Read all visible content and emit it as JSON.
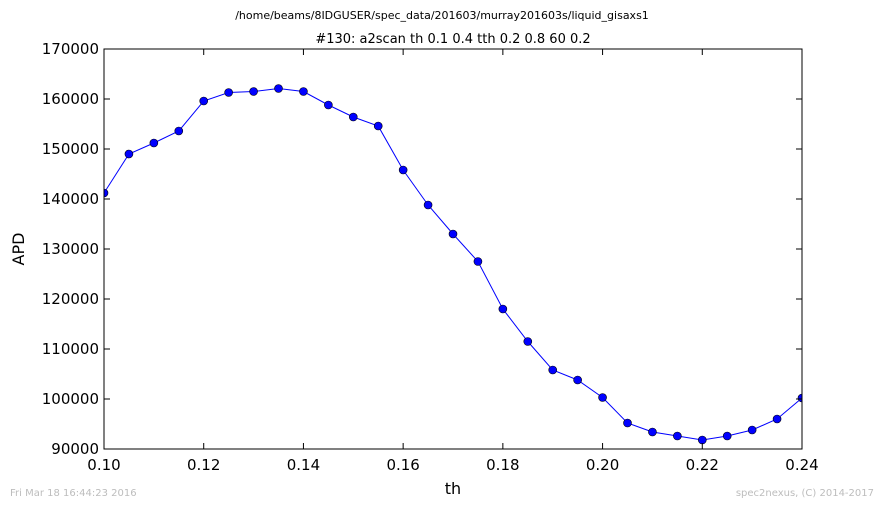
{
  "chart_data": {
    "type": "line",
    "suptitle": "/home/beams/8IDGUSER/spec_data/201603/murray201603s/liquid_gisaxs1",
    "title": "#130: a2scan  th 0.1 0.4  tth 0.2 0.8  60 0.2",
    "xlabel": "th",
    "ylabel": "APD",
    "xlim": [
      0.1,
      0.24
    ],
    "ylim": [
      90000,
      170000
    ],
    "xticks": [
      "0.10",
      "0.12",
      "0.14",
      "0.16",
      "0.18",
      "0.20",
      "0.22",
      "0.24"
    ],
    "yticks": [
      "90000",
      "100000",
      "110000",
      "120000",
      "130000",
      "140000",
      "150000",
      "160000",
      "170000"
    ],
    "grid": false,
    "series": [
      {
        "color": "#0000ff",
        "x": [
          0.1,
          0.105,
          0.11,
          0.115,
          0.12,
          0.125,
          0.13,
          0.135,
          0.14,
          0.145,
          0.15,
          0.155,
          0.16,
          0.165,
          0.17,
          0.175,
          0.18,
          0.185,
          0.19,
          0.195,
          0.2,
          0.205,
          0.21,
          0.215,
          0.22,
          0.225,
          0.23,
          0.235,
          0.24
        ],
        "y": [
          141200,
          149000,
          151200,
          153600,
          159600,
          161300,
          161500,
          162100,
          161500,
          158800,
          156400,
          154600,
          145800,
          138800,
          133000,
          127500,
          118000,
          111500,
          105800,
          103800,
          100300,
          95200,
          93400,
          92600,
          91800,
          92600,
          93800,
          96000,
          100200
        ]
      }
    ]
  },
  "footer": {
    "left": "Fri Mar 18 16:44:23 2016",
    "right": "spec2nexus, (C) 2014-2017"
  }
}
